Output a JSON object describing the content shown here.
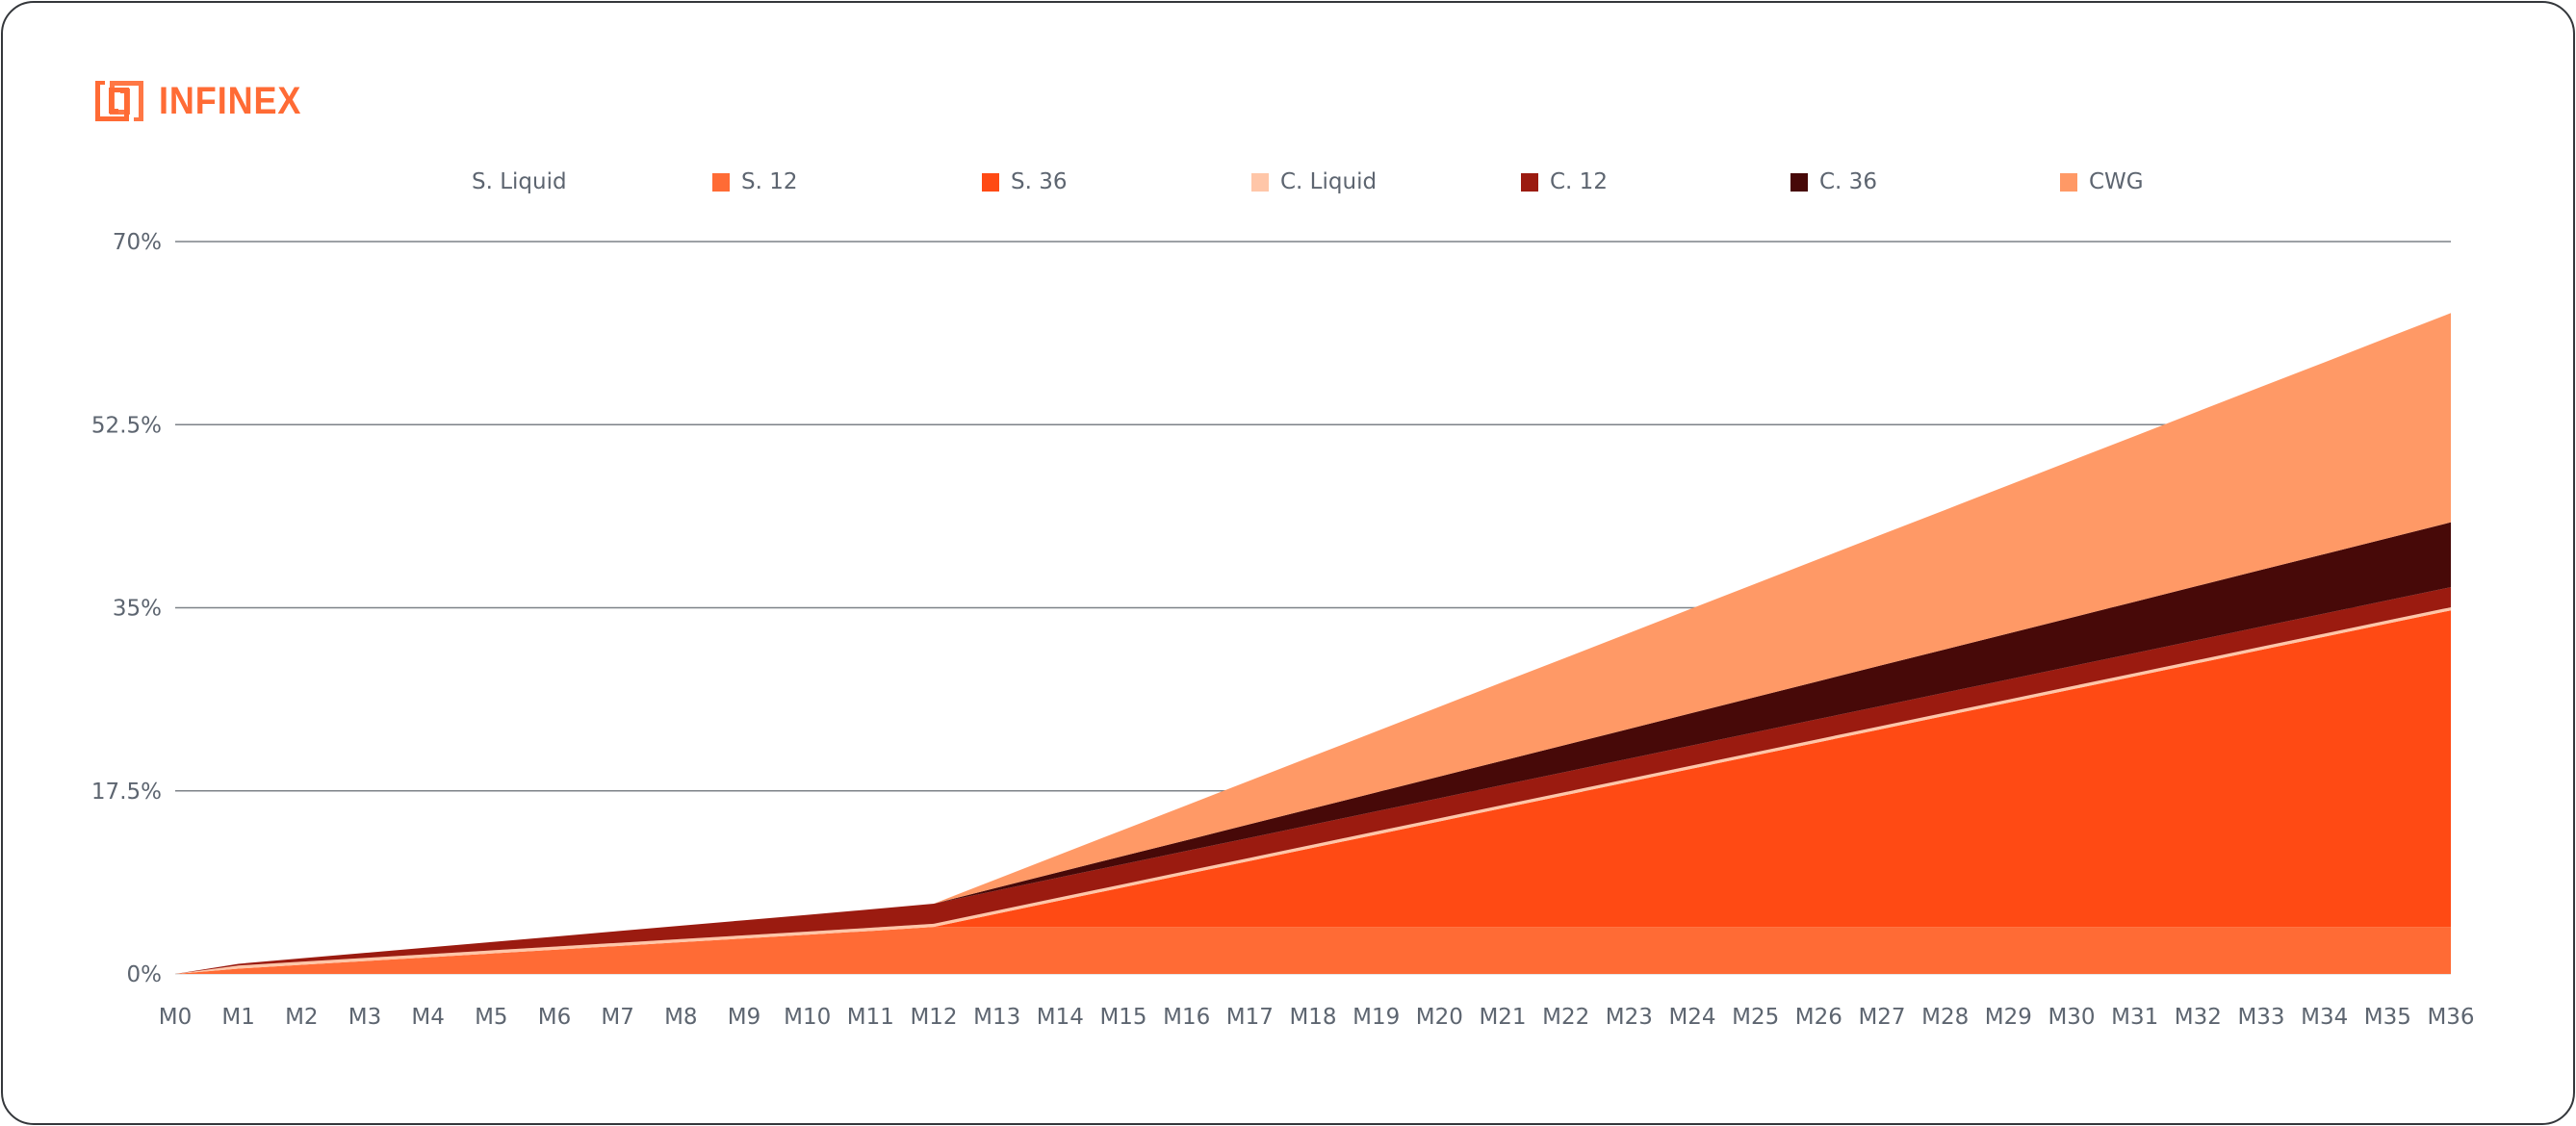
{
  "brand": {
    "name": "INFINEX",
    "color": "#ff6b35",
    "logo_icon": "infinex-interlock-logo"
  },
  "chart_data": {
    "type": "area",
    "stacked": true,
    "title": "",
    "xlabel": "",
    "ylabel": "",
    "ylim": [
      0,
      70
    ],
    "yticks": [
      0,
      17.5,
      35,
      52.5,
      70
    ],
    "ytick_labels": [
      "0%",
      "17.5%",
      "35%",
      "52.5%",
      "70%"
    ],
    "grid": true,
    "legend_position": "top",
    "categories": [
      "M0",
      "M1",
      "M2",
      "M3",
      "M4",
      "M5",
      "M6",
      "M7",
      "M8",
      "M9",
      "M10",
      "M11",
      "M12",
      "M13",
      "M14",
      "M15",
      "M16",
      "M17",
      "M18",
      "M19",
      "M20",
      "M21",
      "M22",
      "M23",
      "M24",
      "M25",
      "M26",
      "M27",
      "M28",
      "M29",
      "M30",
      "M31",
      "M32",
      "M33",
      "M34",
      "M35",
      "M36"
    ],
    "series": [
      {
        "name": "S. Liquid",
        "color": "#ffffff",
        "show_swatch": false,
        "values": [
          0,
          0,
          0,
          0,
          0,
          0,
          0,
          0,
          0,
          0,
          0,
          0,
          0,
          0,
          0,
          0,
          0,
          0,
          0,
          0,
          0,
          0,
          0,
          0,
          0,
          0,
          0,
          0,
          0,
          0,
          0,
          0,
          0,
          0,
          0,
          0,
          0
        ]
      },
      {
        "name": "S. 12",
        "color": "#ff6b35",
        "show_swatch": true,
        "values": [
          0,
          0.51,
          0.87,
          1.23,
          1.59,
          1.95,
          2.31,
          2.67,
          3.03,
          3.39,
          3.75,
          4.11,
          4.5,
          4.5,
          4.5,
          4.5,
          4.5,
          4.5,
          4.5,
          4.5,
          4.5,
          4.5,
          4.5,
          4.5,
          4.5,
          4.5,
          4.5,
          4.5,
          4.5,
          4.5,
          4.5,
          4.5,
          4.5,
          4.5,
          4.5,
          4.5,
          4.5
        ]
      },
      {
        "name": "S. 36",
        "color": "#ff4a14",
        "show_swatch": true,
        "values": [
          0,
          0,
          0,
          0,
          0,
          0,
          0,
          0,
          0,
          0,
          0,
          0,
          0,
          1.26,
          2.52,
          3.78,
          5.04,
          6.3,
          7.56,
          8.82,
          10.08,
          11.34,
          12.6,
          13.86,
          15.13,
          16.39,
          17.65,
          18.91,
          20.17,
          21.43,
          22.69,
          23.95,
          25.21,
          26.47,
          27.73,
          28.99,
          30.25
        ]
      },
      {
        "name": "C. Liquid",
        "color": "#ffc6a8",
        "show_swatch": true,
        "values": [
          0,
          0.3,
          0.3,
          0.3,
          0.3,
          0.3,
          0.3,
          0.3,
          0.3,
          0.3,
          0.3,
          0.3,
          0.3,
          0.3,
          0.3,
          0.3,
          0.3,
          0.3,
          0.3,
          0.3,
          0.3,
          0.3,
          0.3,
          0.3,
          0.3,
          0.3,
          0.3,
          0.3,
          0.3,
          0.3,
          0.3,
          0.3,
          0.3,
          0.3,
          0.3,
          0.3,
          0.3
        ]
      },
      {
        "name": "C. 12",
        "color": "#9b1b10",
        "show_swatch": true,
        "values": [
          0,
          0.16,
          0.32,
          0.48,
          0.64,
          0.8,
          0.96,
          1.12,
          1.28,
          1.44,
          1.6,
          1.76,
          1.92,
          1.92,
          1.92,
          1.92,
          1.92,
          1.92,
          1.92,
          1.92,
          1.92,
          1.92,
          1.92,
          1.92,
          1.92,
          1.92,
          1.92,
          1.92,
          1.92,
          1.92,
          1.92,
          1.92,
          1.92,
          1.92,
          1.92,
          1.92,
          1.92
        ]
      },
      {
        "name": "C. 36",
        "color": "#470908",
        "show_swatch": true,
        "values": [
          0,
          0,
          0,
          0,
          0,
          0,
          0,
          0,
          0,
          0,
          0,
          0,
          0,
          0.26,
          0.52,
          0.78,
          1.03,
          1.29,
          1.55,
          1.81,
          2.07,
          2.33,
          2.58,
          2.84,
          3.1,
          3.36,
          3.62,
          3.88,
          4.13,
          4.39,
          4.65,
          4.91,
          5.17,
          5.43,
          5.68,
          5.94,
          6.2
        ]
      },
      {
        "name": "CWG",
        "color": "#ff9966",
        "show_swatch": true,
        "values": [
          0,
          0,
          0,
          0,
          0,
          0,
          0,
          0,
          0,
          0,
          0,
          0,
          0,
          0.83,
          1.67,
          2.5,
          3.33,
          4.17,
          5,
          5.83,
          6.67,
          7.5,
          8.33,
          9.17,
          10,
          10.83,
          11.67,
          12.5,
          13.33,
          14.17,
          15,
          15.83,
          16.67,
          17.5,
          18.33,
          19.17,
          20
        ]
      }
    ]
  }
}
